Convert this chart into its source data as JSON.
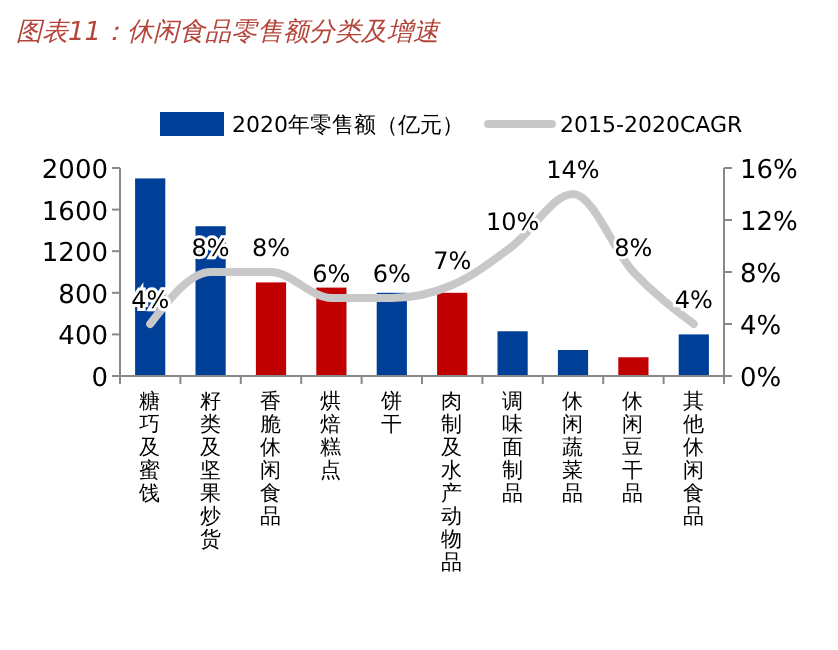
{
  "chart_data": {
    "type": "bar",
    "title": "图表11：休闲食品零售额分类及增速",
    "categories": [
      "糖巧及蜜饯",
      "籽类及坚果炒货",
      "香脆休闲食品",
      "烘焙糕点",
      "饼干",
      "肉制及水产动物品",
      "调味面制品",
      "休闲蔬菜品",
      "休闲豆干品",
      "其他休闲食品"
    ],
    "series": [
      {
        "name": "2020年零售额（亿元）",
        "colors": [
          "#003f98",
          "#003f98",
          "#c00000",
          "#c00000",
          "#003f98",
          "#c00000",
          "#003f98",
          "#003f98",
          "#c00000",
          "#003f98"
        ],
        "values": [
          1900,
          1440,
          900,
          850,
          800,
          800,
          430,
          250,
          180,
          400
        ]
      },
      {
        "name": "2015-2020CAGR",
        "type": "line",
        "axis": "y2",
        "color": "#c8c8c8",
        "values": [
          4,
          8,
          8,
          6,
          6,
          7,
          10,
          14,
          8,
          4
        ],
        "value_labels": [
          "4%",
          "8%",
          "8%",
          "6%",
          "6%",
          "7%",
          "10%",
          "14%",
          "8%",
          "4%"
        ]
      }
    ],
    "ylim": [
      0,
      2000
    ],
    "yticks": [
      0,
      400,
      800,
      1200,
      1600,
      2000
    ],
    "y2lim": [
      0,
      16
    ],
    "y2ticks": [
      {
        "value": 0,
        "label": "0%"
      },
      {
        "value": 4,
        "label": "4%"
      },
      {
        "value": 8,
        "label": "8%"
      },
      {
        "value": 12,
        "label": "12%"
      },
      {
        "value": 16,
        "label": "16%"
      }
    ],
    "legend": "top",
    "grid": false
  }
}
